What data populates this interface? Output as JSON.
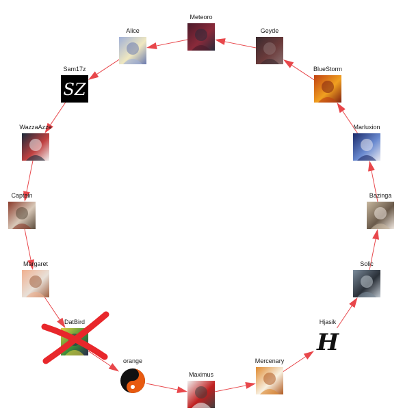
{
  "nodes": [
    {
      "id": "meteoro",
      "label": "Meteoro",
      "icon": "dark-figure-avatar-icon",
      "colors": [
        "#4a1a2a",
        "#8a2a3a",
        "#2a2a3a"
      ]
    },
    {
      "id": "geyde",
      "label": "Geyde",
      "icon": "dark-anime-avatar-icon",
      "colors": [
        "#3a2a2e",
        "#6a3a3a",
        "#8a7070"
      ]
    },
    {
      "id": "bluestorm",
      "label": "BlueStorm",
      "icon": "fire-figure-avatar-icon",
      "colors": [
        "#c04010",
        "#f0a020",
        "#802010"
      ]
    },
    {
      "id": "marluxion",
      "label": "Marluxion",
      "icon": "glasses-anime-avatar-icon",
      "colors": [
        "#1a2a6a",
        "#6a8ad0",
        "#e8e8f0"
      ]
    },
    {
      "id": "bazinga",
      "label": "Bazinga",
      "icon": "sloth-avatar-icon",
      "colors": [
        "#c8b8a0",
        "#6a5a4a",
        "#f0e8e0"
      ]
    },
    {
      "id": "solic",
      "label": "Solic",
      "icon": "reaper-avatar-icon",
      "colors": [
        "#7a8a9a",
        "#2a3038",
        "#c0c8d0"
      ]
    },
    {
      "id": "hjasik",
      "label": "Hjasik",
      "icon": "gothic-h-letter-icon",
      "letter": "H",
      "colors": [
        "#ffffff",
        "#111111",
        "#111111"
      ]
    },
    {
      "id": "mercenary",
      "label": "Mercenary",
      "icon": "puppy-avatar-icon",
      "colors": [
        "#e08a30",
        "#f8f0e0",
        "#b05a20"
      ]
    },
    {
      "id": "maximus",
      "label": "Maximus",
      "icon": "santa-hat-sketch-avatar-icon",
      "colors": [
        "#f0f0f0",
        "#c02020",
        "#404040"
      ]
    },
    {
      "id": "orange",
      "label": "orange",
      "icon": "yin-yang-icon",
      "colors": [
        "#e85a10",
        "#111111",
        "#ffffff"
      ]
    },
    {
      "id": "datbird",
      "label": "DatBird",
      "icon": "colorful-bird-avatar-icon",
      "crossed": true,
      "colors": [
        "#e0d040",
        "#3a8a3a",
        "#2a2a4a"
      ]
    },
    {
      "id": "margaret",
      "label": "Margaret",
      "icon": "glasses-girl-avatar-icon",
      "colors": [
        "#f0b090",
        "#e8e0d8",
        "#a06040"
      ]
    },
    {
      "id": "captain",
      "label": "Captain",
      "icon": "cat-in-hat-avatar-icon",
      "colors": [
        "#8a3a2a",
        "#d8c8b8",
        "#5a4a3a"
      ]
    },
    {
      "id": "wazzaazze",
      "label": "WazzaAzze",
      "icon": "dark-pattern-avatar-icon",
      "colors": [
        "#1a2a3a",
        "#c04040",
        "#f0f0f0"
      ]
    },
    {
      "id": "sam17z",
      "label": "Sam17z",
      "icon": "sz-logo-icon",
      "logo_text": "SZ",
      "colors": [
        "#000000",
        "#ffffff",
        "#444444"
      ]
    },
    {
      "id": "alice",
      "label": "Alice",
      "icon": "blonde-anime-avatar-icon",
      "colors": [
        "#a0b0d8",
        "#f0e8c0",
        "#6a7ab0"
      ]
    }
  ],
  "edges": [
    [
      "meteoro",
      "alice"
    ],
    [
      "alice",
      "sam17z"
    ],
    [
      "sam17z",
      "wazzaazze"
    ],
    [
      "wazzaazze",
      "captain"
    ],
    [
      "captain",
      "margaret"
    ],
    [
      "margaret",
      "datbird"
    ],
    [
      "datbird",
      "orange"
    ],
    [
      "orange",
      "maximus"
    ],
    [
      "maximus",
      "mercenary"
    ],
    [
      "mercenary",
      "hjasik"
    ],
    [
      "hjasik",
      "solic"
    ],
    [
      "solic",
      "bazinga"
    ],
    [
      "bazinga",
      "marluxion"
    ],
    [
      "marluxion",
      "bluestorm"
    ],
    [
      "bluestorm",
      "geyde"
    ],
    [
      "geyde",
      "meteoro"
    ]
  ],
  "colors": {
    "edge": "#e8474b",
    "cross": "#e8272b"
  }
}
